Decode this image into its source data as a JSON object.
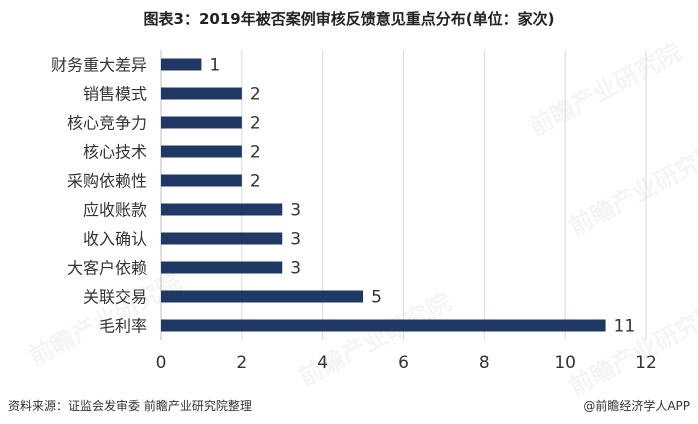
{
  "title": "图表3：2019年被否案例审核反馈意见重点分布(单位：家次)",
  "footer": {
    "source": "资料来源：证监会发审委 前瞻产业研究院整理",
    "brand": "@前瞻经济学人APP"
  },
  "watermark": "前瞻产业研究院",
  "colors": {
    "bar": "#1f3864",
    "grid": "#d9d9d9",
    "text": "#333333"
  },
  "chart_data": {
    "type": "bar",
    "orientation": "horizontal",
    "categories": [
      "财务重大差异",
      "销售模式",
      "核心竞争力",
      "核心技术",
      "采购依赖性",
      "应收账款",
      "收入确认",
      "大客户依赖",
      "关联交易",
      "毛利率"
    ],
    "values": [
      1,
      2,
      2,
      2,
      2,
      3,
      3,
      3,
      5,
      11
    ],
    "xlim": [
      0,
      12
    ],
    "xticks": [
      0,
      2,
      4,
      6,
      8,
      10,
      12
    ],
    "grid": true,
    "data_labels": true
  }
}
